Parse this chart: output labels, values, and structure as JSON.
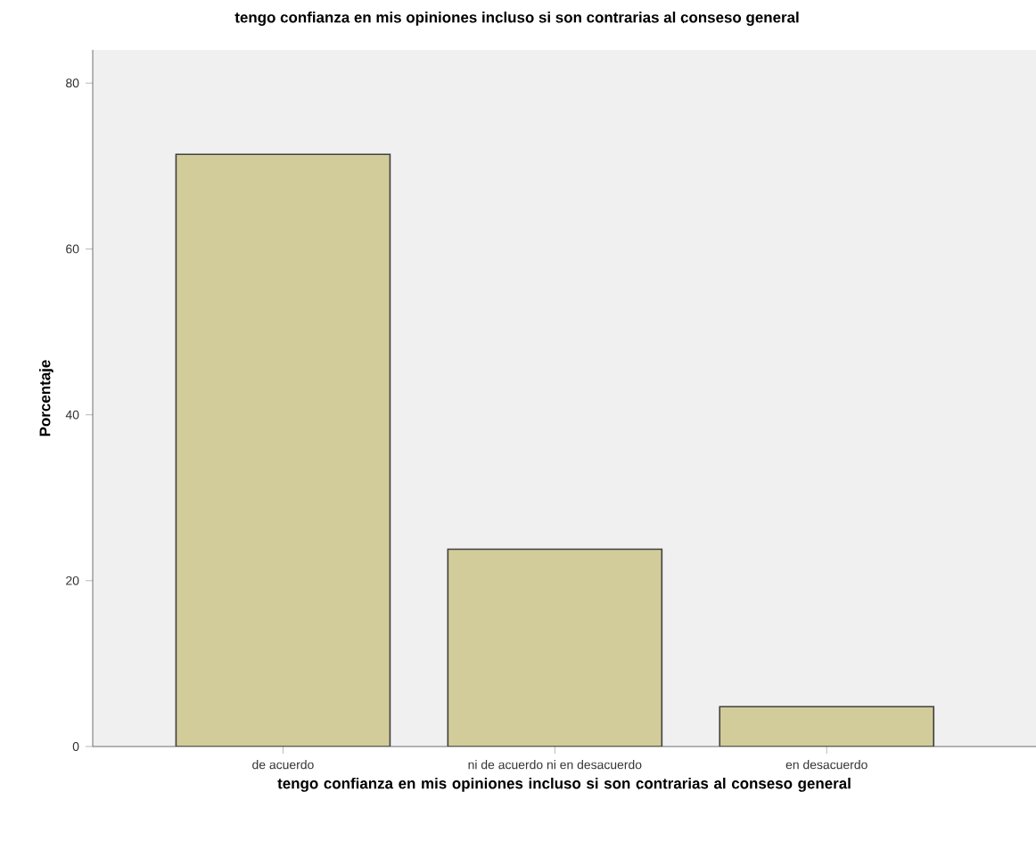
{
  "chart_data": {
    "type": "bar",
    "title": "tengo confianza en mis opiniones incluso si son contrarias al conseso general",
    "xlabel": "tengo confianza en mis opiniones incluso si son contrarias al conseso general",
    "ylabel": "Porcentaje",
    "categories": [
      "de acuerdo",
      "ni de acuerdo ni en desacuerdo",
      "en desacuerdo"
    ],
    "values": [
      71.4,
      23.8,
      4.8
    ],
    "color": "#d2cc9a",
    "ylim": [
      0,
      84
    ],
    "yticks": [
      0,
      20,
      40,
      60,
      80
    ],
    "grid": false
  }
}
